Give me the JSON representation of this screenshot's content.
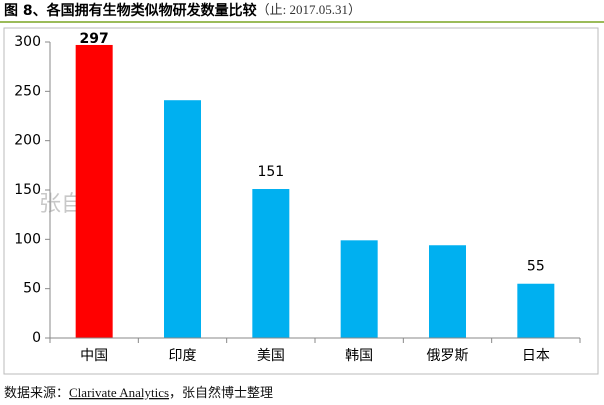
{
  "chart_data": {
    "type": "bar",
    "title": "图 8、各国拥有生物类似物研发数量比较",
    "title_note": "（止: 2017.05.31）",
    "categories": [
      "中国",
      "印度",
      "美国",
      "韩国",
      "俄罗斯",
      "日本"
    ],
    "values": [
      297,
      241,
      151,
      99,
      94,
      55
    ],
    "value_labels": [
      "297",
      null,
      "151",
      null,
      null,
      "55"
    ],
    "colors": [
      "#ff0000",
      "#00b0f0",
      "#00b0f0",
      "#00b0f0",
      "#00b0f0",
      "#00b0f0"
    ],
    "ylim": [
      0,
      300
    ],
    "yticks": [
      0,
      50,
      100,
      150,
      200,
      250,
      300
    ],
    "watermark": "张自然",
    "source_prefix": "数据来源：",
    "source_link": "Clarivate Analytics",
    "source_suffix": "，张自然博士整理"
  }
}
